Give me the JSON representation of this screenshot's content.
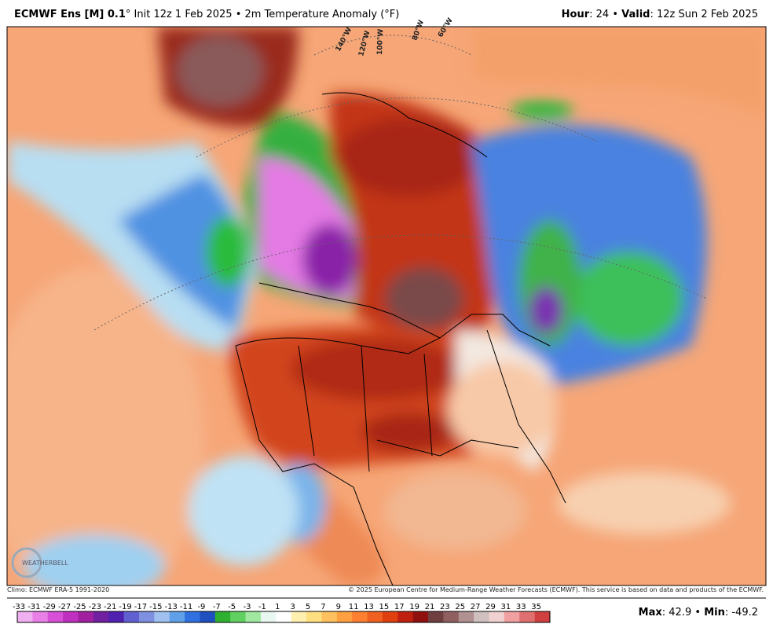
{
  "header": {
    "model": "ECMWF Ens [M] 0.1",
    "run": "° Init 12z 1 Feb 2025 • 2m Temperature Anomaly (°F)",
    "hour_label": "Hour",
    "hour": "24",
    "separator": "•",
    "valid_label": "Valid",
    "valid": "12z Sun 2 Feb 2025"
  },
  "map": {
    "longitude_labels": [
      "140°W",
      "120°W",
      "100°W",
      "80°W",
      "60°W"
    ],
    "logo": "WEATHERBELL"
  },
  "footer": {
    "climo": "Climo: ECMWF ERA-5 1991-2020",
    "copyright": "© 2025 European Centre for Medium-Range Weather Forecasts (ECMWF). This service is based on data and products of the ECMWF."
  },
  "colorbar": {
    "ticks": [
      -33,
      -31,
      -29,
      -27,
      -25,
      -23,
      -21,
      -19,
      -17,
      -15,
      -13,
      -11,
      -9,
      -7,
      -5,
      -3,
      -1,
      1,
      3,
      5,
      7,
      9,
      11,
      13,
      15,
      17,
      19,
      21,
      23,
      25,
      27,
      29,
      31,
      33,
      35
    ],
    "colors": [
      "#f0b0f0",
      "#e880e8",
      "#d850d8",
      "#c030c0",
      "#a020a0",
      "#7020a0",
      "#5020b0",
      "#6060d0",
      "#8090e0",
      "#a0c0f0",
      "#60a0e8",
      "#3070e0",
      "#2050c0",
      "#30b030",
      "#60d060",
      "#a0e8a0",
      "#e8f8f0",
      "#ffffff",
      "#fff0b0",
      "#ffe080",
      "#ffc060",
      "#ffa040",
      "#ff8030",
      "#f06020",
      "#e04010",
      "#c02010",
      "#901010",
      "#704040",
      "#906060",
      "#b09090",
      "#d0c0c0",
      "#f0d0d0",
      "#f0a0a0",
      "#e07070",
      "#d04040"
    ]
  },
  "stats": {
    "max_label": "Max",
    "max": 42.9,
    "separator": "•",
    "min_label": "Min",
    "min": -49.2
  }
}
